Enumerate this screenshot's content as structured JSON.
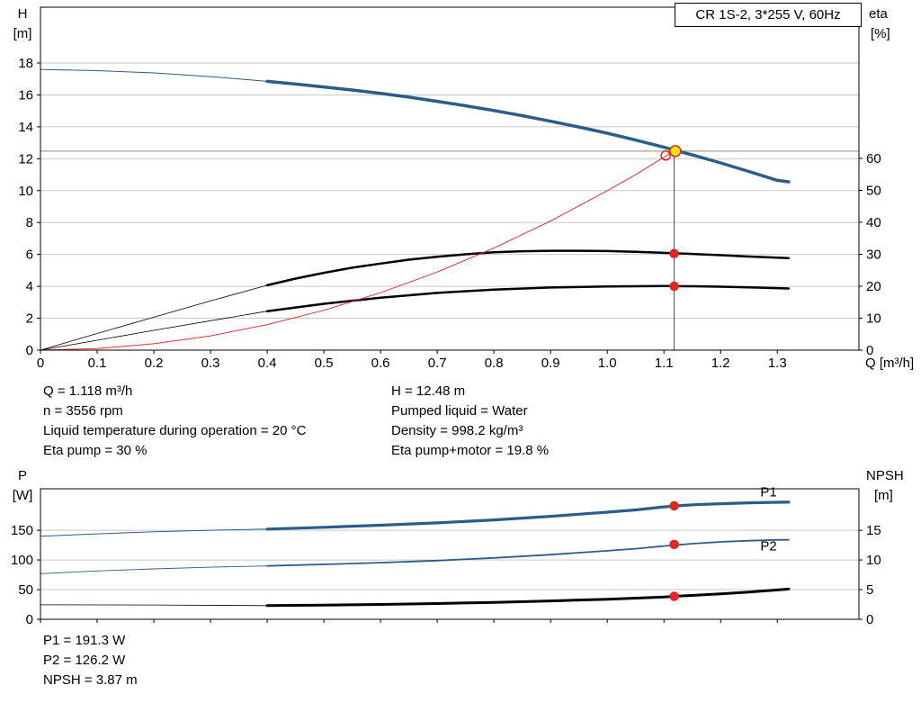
{
  "window": {
    "title_box": "CR 1S-2, 3*255 V, 60Hz"
  },
  "colors": {
    "blue": "#2b5d8b",
    "black": "#000000",
    "red": "#e03232",
    "dot_red": "#e8241f",
    "yellow": "#ffe400",
    "grid": "#c9c9c9",
    "guide_h": "#8a8a8a",
    "guide_v": "#4d4d4d"
  },
  "annotations": {
    "top_left": [
      "Q = 1.118 m³/h",
      "n = 3556 rpm",
      "Liquid temperature during operation = 20 °C",
      "Eta pump = 30 %"
    ],
    "top_right": [
      "H = 12.48 m",
      "Pumped liquid = Water",
      "Density = 998.2 kg/m³",
      "Eta pump+motor = 19.8 %"
    ],
    "bottom": [
      "P1 = 191.3 W",
      "P2 = 126.2 W",
      "NPSH = 3.87 m"
    ]
  },
  "chart_data": [
    {
      "type": "line",
      "title": "CR 1S-2, 3*255 V, 60Hz",
      "x_axis": {
        "label": "Q [m³/h]",
        "min": 0,
        "max": 1.444,
        "ticks": [
          0,
          0.1,
          0.2,
          0.3,
          0.4,
          0.5,
          0.6,
          0.7,
          0.8,
          0.9,
          1.0,
          1.1,
          1.2,
          1.3
        ],
        "tick_labels": [
          "0",
          "0.1",
          "0.2",
          "0.3",
          "0.4",
          "0.5",
          "0.6",
          "0.7",
          "0.8",
          "0.9",
          "1.0",
          "1.1",
          "1.2",
          "1.3"
        ]
      },
      "left_axis": {
        "name": "H",
        "unit": "[m]",
        "min": 0,
        "max": 21.5,
        "ticks": [
          0,
          2,
          4,
          6,
          8,
          10,
          12,
          14,
          16,
          18
        ]
      },
      "right_axis": {
        "name": "eta",
        "unit": "[%]",
        "min": 0,
        "max": 107.3,
        "ticks": [
          0,
          10,
          20,
          30,
          40,
          50,
          60
        ]
      },
      "duty_point": {
        "q": 1.118,
        "h": 12.48,
        "eta_pump": 30,
        "eta_pump_motor": 19.8
      },
      "series": [
        {
          "name": "head-curve-lead",
          "axis": "left",
          "color": "blue",
          "width": 1,
          "points": [
            [
              0,
              17.6
            ],
            [
              0.1,
              17.52
            ],
            [
              0.2,
              17.38
            ],
            [
              0.3,
              17.15
            ],
            [
              0.4,
              16.85
            ]
          ]
        },
        {
          "name": "head-curve",
          "axis": "left",
          "color": "blue",
          "width": 3.5,
          "points": [
            [
              0.4,
              16.85
            ],
            [
              0.45,
              16.68
            ],
            [
              0.5,
              16.5
            ],
            [
              0.55,
              16.31
            ],
            [
              0.6,
              16.1
            ],
            [
              0.65,
              15.86
            ],
            [
              0.7,
              15.6
            ],
            [
              0.75,
              15.32
            ],
            [
              0.8,
              15.02
            ],
            [
              0.85,
              14.7
            ],
            [
              0.9,
              14.35
            ],
            [
              0.95,
              13.99
            ],
            [
              1.0,
              13.6
            ],
            [
              1.05,
              13.17
            ],
            [
              1.1,
              12.72
            ],
            [
              1.15,
              12.24
            ],
            [
              1.2,
              11.74
            ],
            [
              1.25,
              11.2
            ],
            [
              1.3,
              10.64
            ],
            [
              1.32,
              10.55
            ]
          ]
        },
        {
          "name": "eta-pump-lead",
          "axis": "right",
          "color": "black",
          "width": 0.8,
          "points": [
            [
              0,
              0
            ],
            [
              0.1,
              5.2
            ],
            [
              0.2,
              10.3
            ],
            [
              0.3,
              15.4
            ],
            [
              0.4,
              20.3
            ]
          ]
        },
        {
          "name": "eta-pump",
          "axis": "right",
          "color": "black",
          "width": 2.5,
          "points": [
            [
              0.4,
              20.3
            ],
            [
              0.45,
              22.4
            ],
            [
              0.5,
              24.2
            ],
            [
              0.55,
              25.8
            ],
            [
              0.6,
              27.1
            ],
            [
              0.65,
              28.3
            ],
            [
              0.7,
              29.2
            ],
            [
              0.75,
              30.0
            ],
            [
              0.8,
              30.6
            ],
            [
              0.85,
              30.95
            ],
            [
              0.9,
              31.1
            ],
            [
              0.95,
              31.1
            ],
            [
              1.0,
              31.0
            ],
            [
              1.05,
              30.75
            ],
            [
              1.1,
              30.45
            ],
            [
              1.15,
              30.1
            ],
            [
              1.2,
              29.7
            ],
            [
              1.25,
              29.3
            ],
            [
              1.3,
              28.95
            ],
            [
              1.32,
              28.8
            ]
          ]
        },
        {
          "name": "eta-pump-motor-lead",
          "axis": "right",
          "color": "black",
          "width": 0.8,
          "points": [
            [
              0,
              0
            ],
            [
              0.2,
              6.2
            ],
            [
              0.4,
              12.2
            ]
          ]
        },
        {
          "name": "eta-pump-motor",
          "axis": "right",
          "color": "black",
          "width": 2.5,
          "points": [
            [
              0.4,
              12.2
            ],
            [
              0.5,
              14.5
            ],
            [
              0.6,
              16.4
            ],
            [
              0.7,
              17.9
            ],
            [
              0.8,
              18.95
            ],
            [
              0.9,
              19.6
            ],
            [
              1.0,
              19.95
            ],
            [
              1.1,
              20.05
            ],
            [
              1.15,
              20.0
            ],
            [
              1.2,
              19.85
            ],
            [
              1.25,
              19.65
            ],
            [
              1.3,
              19.4
            ],
            [
              1.32,
              19.3
            ]
          ]
        },
        {
          "name": "affinity-parabola",
          "axis": "left",
          "color": "red",
          "width": 1,
          "points": [
            [
              0,
              0
            ],
            [
              0.1,
              0.1
            ],
            [
              0.2,
              0.4
            ],
            [
              0.3,
              0.9
            ],
            [
              0.4,
              1.6
            ],
            [
              0.5,
              2.5
            ],
            [
              0.6,
              3.6
            ],
            [
              0.7,
              4.9
            ],
            [
              0.8,
              6.4
            ],
            [
              0.9,
              8.1
            ],
            [
              1.0,
              10.0
            ],
            [
              1.05,
              11.0
            ],
            [
              1.1,
              12.1
            ],
            [
              1.118,
              12.48
            ]
          ]
        }
      ],
      "guides": [
        {
          "name": "duty-horizontal-line",
          "orient": "h",
          "axis": "left",
          "y": 12.48,
          "color": "guide_h",
          "width": 1
        },
        {
          "name": "duty-vertical-line",
          "orient": "v",
          "axis": "left",
          "x": 1.118,
          "from": 0,
          "to": 12.48,
          "color": "guide_v",
          "width": 1
        }
      ],
      "markers": [
        {
          "name": "requested-duty-marker",
          "x": 1.103,
          "y": 12.2,
          "axis": "left",
          "r": 5,
          "fill": "none",
          "stroke": "dot_red"
        },
        {
          "name": "duty-point-marker",
          "x": 1.12,
          "y": 12.48,
          "axis": "left",
          "r": 6,
          "fill": "yellow",
          "stroke": "dot_red"
        },
        {
          "name": "eta-pump-marker",
          "x": 1.118,
          "y": 30.2,
          "axis": "right",
          "r": 4.5,
          "fill": "dot_red",
          "stroke": "dot_red"
        },
        {
          "name": "eta-pump-motor-marker",
          "x": 1.118,
          "y": 20.0,
          "axis": "right",
          "r": 4.5,
          "fill": "dot_red",
          "stroke": "dot_red"
        }
      ],
      "labels": []
    },
    {
      "type": "line",
      "x_axis": {
        "label": "",
        "min": 0,
        "max": 1.444,
        "ticks": [
          0,
          0.1,
          0.2,
          0.3,
          0.4,
          0.5,
          0.6,
          0.7,
          0.8,
          0.9,
          1.0,
          1.1,
          1.2,
          1.3
        ]
      },
      "left_axis": {
        "name": "P",
        "unit": "[W]",
        "min": 0,
        "max": 220,
        "ticks": [
          0,
          50,
          100,
          150
        ]
      },
      "right_axis": {
        "name": "NPSH",
        "unit": "[m]",
        "min": 0,
        "max": 22,
        "ticks": [
          0,
          5,
          10,
          15
        ]
      },
      "duty_point": {
        "q": 1.118,
        "p1": 191.3,
        "p2": 126.2,
        "npsh": 3.87
      },
      "series": [
        {
          "name": "p1-lead",
          "axis": "left",
          "color": "blue",
          "width": 1,
          "points": [
            [
              0,
              140
            ],
            [
              0.1,
              144
            ],
            [
              0.2,
              147.5
            ],
            [
              0.3,
              150
            ],
            [
              0.4,
              152
            ]
          ]
        },
        {
          "name": "p1-curve",
          "axis": "left",
          "color": "blue",
          "width": 3.2,
          "points": [
            [
              0.4,
              152
            ],
            [
              0.5,
              155
            ],
            [
              0.6,
              158.5
            ],
            [
              0.7,
              162.5
            ],
            [
              0.8,
              167.5
            ],
            [
              0.9,
              173.5
            ],
            [
              1.0,
              180.5
            ],
            [
              1.05,
              184.3
            ],
            [
              1.1,
              189.5
            ],
            [
              1.15,
              193
            ],
            [
              1.2,
              194.8
            ],
            [
              1.25,
              196.3
            ],
            [
              1.3,
              197.2
            ],
            [
              1.32,
              197.4
            ]
          ]
        },
        {
          "name": "p2-lead",
          "axis": "left",
          "color": "blue",
          "width": 0.9,
          "points": [
            [
              0,
              77
            ],
            [
              0.1,
              81.5
            ],
            [
              0.2,
              85
            ],
            [
              0.3,
              87.8
            ],
            [
              0.4,
              90
            ]
          ]
        },
        {
          "name": "p2-curve",
          "axis": "left",
          "color": "blue",
          "width": 1.8,
          "points": [
            [
              0.4,
              90
            ],
            [
              0.5,
              92.5
            ],
            [
              0.6,
              95.5
            ],
            [
              0.7,
              99
            ],
            [
              0.8,
              103.5
            ],
            [
              0.9,
              109
            ],
            [
              1.0,
              115.5
            ],
            [
              1.05,
              119
            ],
            [
              1.1,
              123.5
            ],
            [
              1.15,
              127.5
            ],
            [
              1.2,
              130.5
            ],
            [
              1.25,
              132.5
            ],
            [
              1.3,
              133.8
            ],
            [
              1.32,
              134
            ]
          ]
        },
        {
          "name": "npsh-lead",
          "axis": "right",
          "color": "black",
          "width": 0.8,
          "points": [
            [
              0,
              2.45
            ],
            [
              0.2,
              2.42
            ],
            [
              0.4,
              2.3
            ]
          ]
        },
        {
          "name": "npsh-curve",
          "axis": "right",
          "color": "black",
          "width": 3,
          "points": [
            [
              0.4,
              2.3
            ],
            [
              0.5,
              2.38
            ],
            [
              0.6,
              2.5
            ],
            [
              0.7,
              2.66
            ],
            [
              0.8,
              2.86
            ],
            [
              0.9,
              3.1
            ],
            [
              1.0,
              3.38
            ],
            [
              1.1,
              3.75
            ],
            [
              1.118,
              3.87
            ],
            [
              1.2,
              4.3
            ],
            [
              1.25,
              4.6
            ],
            [
              1.3,
              4.95
            ],
            [
              1.32,
              5.1
            ]
          ]
        }
      ],
      "guides": [],
      "markers": [
        {
          "name": "p1-marker",
          "x": 1.118,
          "y": 191.3,
          "axis": "left",
          "r": 4.5,
          "fill": "dot_red",
          "stroke": "dot_red"
        },
        {
          "name": "p2-marker",
          "x": 1.118,
          "y": 126.2,
          "axis": "left",
          "r": 4.5,
          "fill": "dot_red",
          "stroke": "dot_red"
        },
        {
          "name": "npsh-marker",
          "x": 1.118,
          "y": 3.87,
          "axis": "right",
          "r": 4.5,
          "fill": "dot_red",
          "stroke": "dot_red"
        }
      ],
      "labels": [
        {
          "text": "P1",
          "x": 1.27,
          "y": 207,
          "axis": "left",
          "color": "blue"
        },
        {
          "text": "P2",
          "x": 1.27,
          "y": 116,
          "axis": "left",
          "color": "blue"
        }
      ]
    }
  ]
}
